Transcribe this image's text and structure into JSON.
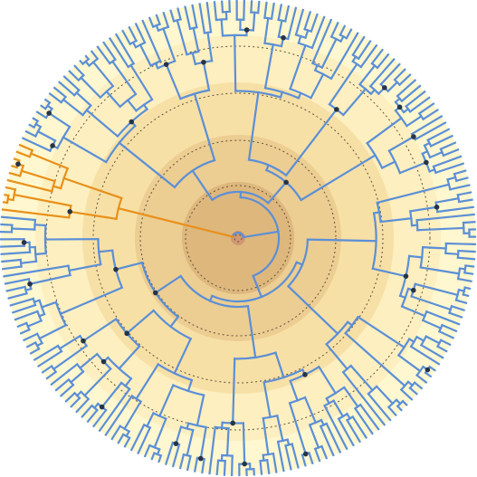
{
  "figure": {
    "kind": "circular-phylogenetic-tree",
    "leaf_count": 200,
    "highlighted_clade_leaves": 10,
    "internal_node_markers": true,
    "age_bands": 5,
    "dashed_time_rings": 5,
    "highlighted_clade_position": "top"
  },
  "colors": {
    "branch": "#5b8fd6",
    "highlighted_clade": "#e8901a",
    "node_marker": "#253447",
    "ring_guide": "#5f5440",
    "bands": [
      "#fff7cf",
      "#fdefbf",
      "#f7e0a6",
      "#eccd92",
      "#deb77d"
    ],
    "center_dot": "#cf9872"
  }
}
